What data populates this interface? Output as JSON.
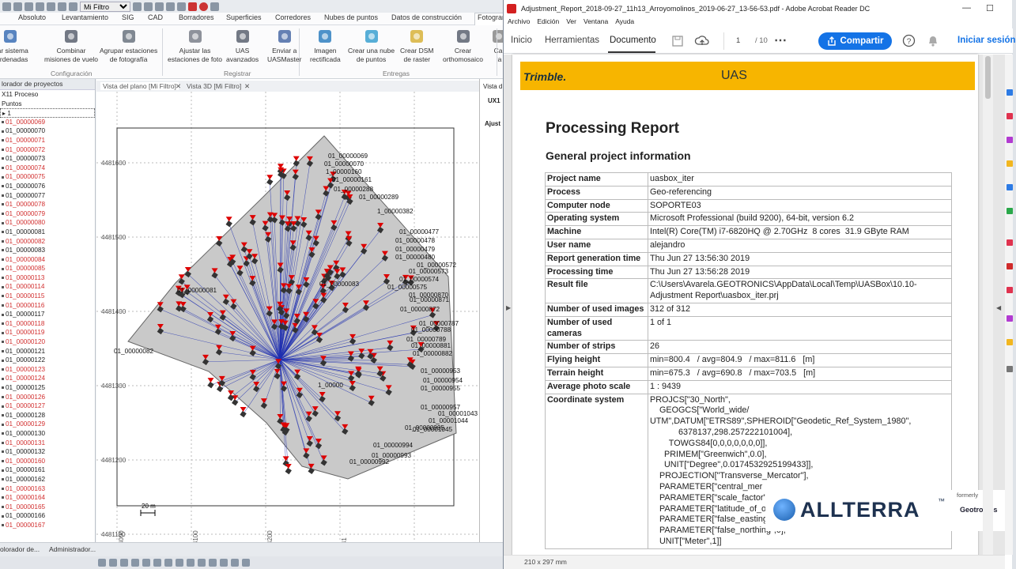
{
  "cad": {
    "filter_value": "Mi Filtro",
    "ribbon_tabs": [
      "Absoluto",
      "Levantamiento",
      "SIG",
      "CAD",
      "Borradores",
      "Superficies",
      "Corredores",
      "Nubes de puntos",
      "Datos de construcción",
      "Fotogram"
    ],
    "ribbon_buttons": [
      {
        "label": "biar sistema\noordenadas",
        "icon": "globe-icon"
      },
      {
        "label": "Combinar\nmisiones de vuelo",
        "icon": "merge-icon"
      },
      {
        "label": "Agrupar estaciones\nde fotografía",
        "icon": "group-icon"
      },
      {
        "label": "Ajustar las\nestaciones de foto",
        "icon": "adjust-icon"
      },
      {
        "label": "UAS\navanzados",
        "icon": "uas-icon"
      },
      {
        "label": "Enviar a\nUASMaster",
        "icon": "send-icon"
      },
      {
        "label": "Imagen\nrectificada",
        "icon": "image-icon"
      },
      {
        "label": "Crear una nube\nde puntos",
        "icon": "pointcloud-icon"
      },
      {
        "label": "Crear DSM\nde raster",
        "icon": "dsm-icon"
      },
      {
        "label": "Crear\northomosaico",
        "icon": "orthomosaic-icon"
      },
      {
        "label": "Cal\nla",
        "icon": "calc-icon"
      }
    ],
    "ribbon_groups": [
      "Configuración",
      "Registrar",
      "Entregas"
    ],
    "explorer": {
      "title": "lorador de proyectos",
      "rows": [
        {
          "t": "X11 Proceso",
          "red": false
        },
        {
          "t": "Puntos",
          "red": false
        },
        {
          "t": "1",
          "red": false
        },
        {
          "t": "01_00000069",
          "red": true
        },
        {
          "t": "01_00000070",
          "red": false
        },
        {
          "t": "01_00000071",
          "red": true
        },
        {
          "t": "01_00000072",
          "red": true
        },
        {
          "t": "01_00000073",
          "red": false
        },
        {
          "t": "01_00000074",
          "red": true
        },
        {
          "t": "01_00000075",
          "red": true
        },
        {
          "t": "01_00000076",
          "red": false
        },
        {
          "t": "01_00000077",
          "red": false
        },
        {
          "t": "01_00000078",
          "red": true
        },
        {
          "t": "01_00000079",
          "red": true
        },
        {
          "t": "01_00000080",
          "red": true
        },
        {
          "t": "01_00000081",
          "red": false
        },
        {
          "t": "01_00000082",
          "red": true
        },
        {
          "t": "01_00000083",
          "red": false
        },
        {
          "t": "01_00000084",
          "red": true
        },
        {
          "t": "01_00000085",
          "red": true
        },
        {
          "t": "01_00000113",
          "red": true
        },
        {
          "t": "01_00000114",
          "red": true
        },
        {
          "t": "01_00000115",
          "red": true
        },
        {
          "t": "01_00000116",
          "red": true
        },
        {
          "t": "01_00000117",
          "red": false
        },
        {
          "t": "01_00000118",
          "red": true
        },
        {
          "t": "01_00000119",
          "red": true
        },
        {
          "t": "01_00000120",
          "red": true
        },
        {
          "t": "01_00000121",
          "red": false
        },
        {
          "t": "01_00000122",
          "red": false
        },
        {
          "t": "01_00000123",
          "red": true
        },
        {
          "t": "01_00000124",
          "red": true
        },
        {
          "t": "01_00000125",
          "red": false
        },
        {
          "t": "01_00000126",
          "red": true
        },
        {
          "t": "01_00000127",
          "red": true
        },
        {
          "t": "01_00000128",
          "red": false
        },
        {
          "t": "01_00000129",
          "red": true
        },
        {
          "t": "01_00000130",
          "red": false
        },
        {
          "t": "01_00000131",
          "red": true
        },
        {
          "t": "01_00000132",
          "red": false
        },
        {
          "t": "01_00000160",
          "red": true
        },
        {
          "t": "01_00000161",
          "red": false
        },
        {
          "t": "01_00000162",
          "red": false
        },
        {
          "t": "01_00000163",
          "red": true
        },
        {
          "t": "01_00000164",
          "red": true
        },
        {
          "t": "01_00000165",
          "red": true
        },
        {
          "t": "01_00000166",
          "red": false
        },
        {
          "t": "01_00000167",
          "red": true
        }
      ]
    },
    "view_tabs": {
      "plan": "Vista del plano [Mi Filtro]",
      "view3d": "Vista 3D [Mi Filtro]",
      "mini": "Vista d"
    },
    "mini_labels": [
      "UX1",
      "Ajust"
    ],
    "plan": {
      "northing_labels": [
        "4481600",
        "4481500",
        "4481400",
        "4481300",
        "4481200",
        "4481100"
      ],
      "easting_labels": [
        "424000",
        "424100",
        "424200",
        "4241"
      ],
      "scale_label": "20 m",
      "photo_labels": [
        "01_00000069",
        "01_00000070",
        "1_00000160",
        "01_00000161",
        "01_00000288",
        "01_00000289",
        "1_00000382",
        "01_00000477",
        "01_00000478",
        "01_00000479",
        "01_00000480",
        "01_00000572",
        "01_00000573",
        "01_00000574",
        "01_00000575",
        "01_00000870",
        "01_00000871",
        "01_00000872",
        "01_00000787",
        "01_00000788",
        "01_00000789",
        "01_00000881",
        "01_00000882",
        "01_00000953",
        "01_00000954",
        "01_00000955",
        "01_00001043",
        "01_00001044",
        "01_00001045",
        "01_00000994",
        "01_00000993",
        "01_00000992",
        "01_00000082",
        "01_00000081",
        "01_00000083",
        "01_00000957",
        "01_00000995",
        "1_00000"
      ]
    },
    "bottom_tabs": [
      "olorador de...",
      "Administrador..."
    ]
  },
  "acrobat": {
    "window_title": "Adjustment_Report_2018-09-27_11h13_Arroyomolinos_2019-06-27_13-56-53.pdf - Adobe Acrobat Reader DC",
    "menu": [
      "Archivo",
      "Edición",
      "Ver",
      "Ventana",
      "Ayuda"
    ],
    "tabs": [
      "Inicio",
      "Herramientas",
      "Documento"
    ],
    "page_current": "1",
    "page_total": "/ 10",
    "share_label": "Compartir",
    "signin_label": "Iniciar sesión",
    "status_size": "210 x 297 mm",
    "report": {
      "brand": "Trimble.",
      "banner_right": "UAS",
      "title": "Processing Report",
      "subtitle": "General project information",
      "rows": [
        {
          "k": "Project name",
          "v": "uasbox_iter"
        },
        {
          "k": "Process",
          "v": "Geo-referencing"
        },
        {
          "k": "Computer node",
          "v": "SOPORTE03"
        },
        {
          "k": "Operating system",
          "v": "Microsoft Professional (build 9200), 64-bit, version 6.2"
        },
        {
          "k": "Machine",
          "v": "Intel(R) Core(TM) i7-6820HQ @ 2.70GHz  8 cores  31.9 GByte RAM"
        },
        {
          "k": "User name",
          "v": "alejandro"
        },
        {
          "k": "Report generation time",
          "v": "Thu Jun 27 13:56:30 2019"
        },
        {
          "k": "Processing time",
          "v": "Thu Jun 27 13:56:28 2019"
        },
        {
          "k": "Result file",
          "v": "C:\\Users\\Avarela.GEOTRONICS\\AppData\\Local\\Temp\\UASBox\\10.10-\nAdjustment Report\\uasbox_iter.prj"
        },
        {
          "k": "Number of used images",
          "v": "312 of 312"
        },
        {
          "k": "Number of used\ncameras",
          "v": "1 of 1"
        },
        {
          "k": "Number of strips",
          "v": "26"
        },
        {
          "k": "Flying height",
          "v": "min=800.4   / avg=804.9   / max=811.6   [m]"
        },
        {
          "k": "Terrain height",
          "v": "min=675.3   / avg=690.8   / max=703.5   [m]"
        },
        {
          "k": "Average photo scale",
          "v": "1 : 9439"
        },
        {
          "k": "Coordinate system",
          "v": "PROJCS[\"30_North\",\n    GEOGCS[\"World_wide/\nUTM\",DATUM[\"ETRS89\",SPHEROID[\"Geodetic_Ref_System_1980\",\n            6378137,298.257222101004],\n        TOWGS84[0,0,0,0,0,0,0]],\n      PRIMEM[\"Greenwich\",0.0],\n      UNIT[\"Degree\",0.0174532925199433]],\n    PROJECTION[\"Transverse_Mercator\"],\n    PARAMETER[\"central_mer\n    PARAMETER[\"scale_factor\"\n    PARAMETER[\"latitude_of_o\n    PARAMETER[\"false_easting\",500000],\n    PARAMETER[\"false_northing\",0],\n    UNIT[\"Meter\",1]]"
        }
      ]
    },
    "logo": {
      "name": "ALLTERRA",
      "tm": "™",
      "formerly": "formerly",
      "geo": "Geotronics"
    }
  },
  "colors": {
    "acrobat_blue": "#1473e6",
    "banner": "#f7b500",
    "red_label": "#d23030"
  }
}
